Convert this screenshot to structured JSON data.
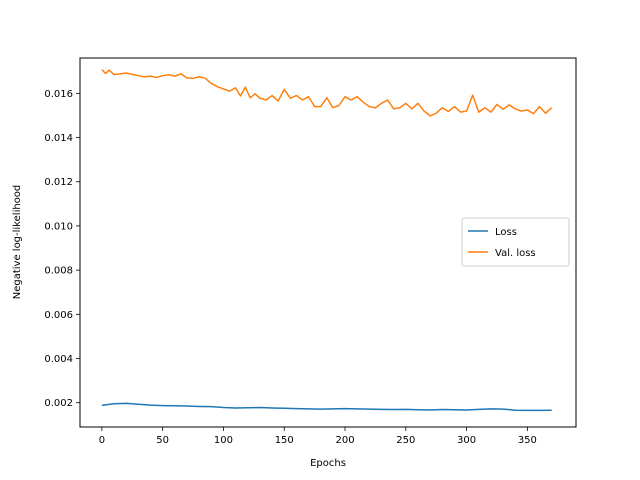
{
  "chart_data": {
    "type": "line",
    "xlabel": "Epochs",
    "ylabel": "Negative log-likelihood",
    "xlim": [
      -18,
      390
    ],
    "ylim": [
      0.0009,
      0.0176
    ],
    "xticks": [
      0,
      50,
      100,
      150,
      200,
      250,
      300,
      350
    ],
    "yticks": [
      0.002,
      0.004,
      0.006,
      0.008,
      0.01,
      0.012,
      0.014,
      0.016
    ],
    "ytick_labels": [
      "0.002",
      "0.004",
      "0.006",
      "0.008",
      "0.010",
      "0.012",
      "0.014",
      "0.016"
    ],
    "grid": false,
    "legend_position": "center-right",
    "series": [
      {
        "name": "Loss",
        "color": "#1f77b4",
        "x": [
          0,
          10,
          20,
          30,
          40,
          50,
          60,
          70,
          80,
          90,
          100,
          110,
          120,
          130,
          140,
          150,
          160,
          170,
          180,
          190,
          200,
          210,
          220,
          230,
          240,
          250,
          260,
          270,
          280,
          290,
          300,
          310,
          320,
          330,
          340,
          350,
          360,
          370
        ],
        "y": [
          0.00188,
          0.00195,
          0.00197,
          0.00193,
          0.00189,
          0.00187,
          0.00186,
          0.00185,
          0.00183,
          0.00182,
          0.00178,
          0.00176,
          0.00177,
          0.00178,
          0.00176,
          0.00175,
          0.00173,
          0.00172,
          0.00171,
          0.00172,
          0.00173,
          0.00172,
          0.00171,
          0.0017,
          0.00169,
          0.0017,
          0.00168,
          0.00167,
          0.00169,
          0.00168,
          0.00167,
          0.0017,
          0.00172,
          0.00171,
          0.00166,
          0.00165,
          0.00165,
          0.00166
        ]
      },
      {
        "name": "Val. loss",
        "color": "#ff7f0e",
        "x": [
          0,
          3,
          6,
          10,
          15,
          20,
          25,
          30,
          35,
          40,
          45,
          50,
          55,
          60,
          65,
          70,
          75,
          80,
          85,
          90,
          95,
          100,
          105,
          110,
          114,
          118,
          122,
          126,
          130,
          135,
          140,
          145,
          150,
          155,
          160,
          165,
          170,
          175,
          180,
          185,
          190,
          195,
          200,
          205,
          210,
          215,
          220,
          225,
          230,
          235,
          240,
          245,
          250,
          255,
          260,
          265,
          270,
          275,
          280,
          285,
          290,
          295,
          300,
          305,
          310,
          315,
          320,
          325,
          330,
          335,
          340,
          345,
          350,
          355,
          360,
          365,
          370
        ],
        "y": [
          0.01708,
          0.0169,
          0.01705,
          0.01685,
          0.01688,
          0.01692,
          0.01686,
          0.0168,
          0.01675,
          0.01678,
          0.01672,
          0.0168,
          0.01684,
          0.01678,
          0.01688,
          0.0167,
          0.01668,
          0.01675,
          0.01668,
          0.01645,
          0.0163,
          0.0162,
          0.0161,
          0.01625,
          0.01588,
          0.01628,
          0.0158,
          0.01598,
          0.01578,
          0.0157,
          0.0159,
          0.01565,
          0.01618,
          0.01578,
          0.0159,
          0.0157,
          0.01585,
          0.0154,
          0.0154,
          0.0158,
          0.01535,
          0.01545,
          0.01585,
          0.0157,
          0.01585,
          0.0156,
          0.0154,
          0.01535,
          0.01555,
          0.0157,
          0.0153,
          0.01535,
          0.01555,
          0.0153,
          0.01555,
          0.0152,
          0.01498,
          0.0151,
          0.01535,
          0.01518,
          0.0154,
          0.01515,
          0.0152,
          0.01592,
          0.01515,
          0.01535,
          0.01515,
          0.0155,
          0.01528,
          0.01548,
          0.0153,
          0.0152,
          0.01525,
          0.01508,
          0.0154,
          0.0151,
          0.01535
        ]
      }
    ]
  }
}
